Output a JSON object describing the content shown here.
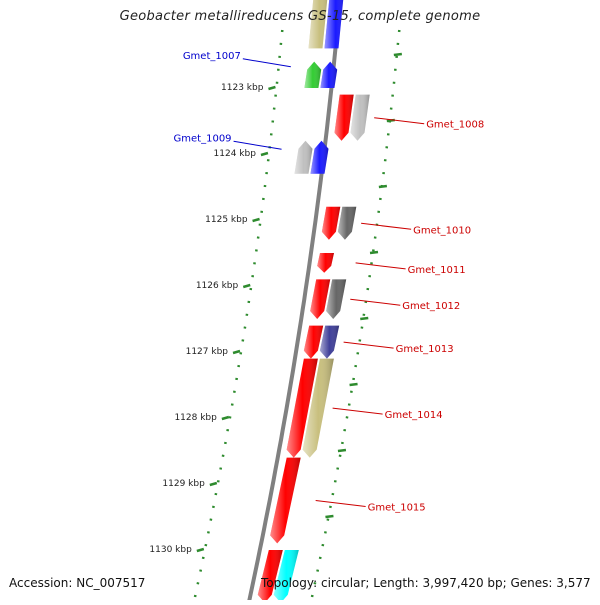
{
  "title": "Geobacter metallireducens GS-15, complete genome",
  "footer": {
    "accession": "Accession: NC_007517",
    "topology": "Topology: circular; Length: 3,997,420 bp; Genes: 3,577"
  },
  "colors": {
    "backbone": "#808080",
    "ruler_ticks": "#2e8b2e",
    "label_forward": "#0000cc",
    "label_reverse": "#cc0000"
  },
  "ruler": {
    "unit": "kbp",
    "ticks": [
      "1123 kbp",
      "1124 kbp",
      "1125 kbp",
      "1126 kbp",
      "1127 kbp",
      "1128 kbp",
      "1129 kbp",
      "1130 kbp"
    ]
  },
  "genes": [
    {
      "label": "",
      "strand": "inner",
      "color": "#c8bf7e",
      "start_kbp": 1121.0,
      "end_kbp": 1122.4
    },
    {
      "label": "",
      "strand": "inner",
      "color": "#1a1aff",
      "start_kbp": 1121.0,
      "end_kbp": 1122.4
    },
    {
      "label": "Gmet_1007",
      "strand": "inner",
      "color": "#33cc33",
      "start_kbp": 1122.6,
      "end_kbp": 1123.0
    },
    {
      "label": "",
      "strand": "inner",
      "color": "#1a1aff",
      "start_kbp": 1122.6,
      "end_kbp": 1123.0
    },
    {
      "label": "Gmet_1008",
      "strand": "outer",
      "color": "#ff0000",
      "start_kbp": 1123.1,
      "end_kbp": 1123.8
    },
    {
      "label": "",
      "strand": "outer",
      "color": "#c0c0c0",
      "start_kbp": 1123.1,
      "end_kbp": 1123.8
    },
    {
      "label": "Gmet_1009",
      "strand": "inner",
      "color": "#c0c0c0",
      "start_kbp": 1123.8,
      "end_kbp": 1124.3
    },
    {
      "label": "",
      "strand": "inner",
      "color": "#1a1aff",
      "start_kbp": 1123.8,
      "end_kbp": 1124.3
    },
    {
      "label": "Gmet_1010",
      "strand": "outer",
      "color": "#ff0000",
      "start_kbp": 1124.8,
      "end_kbp": 1125.3
    },
    {
      "label": "",
      "strand": "outer",
      "color": "#666666",
      "start_kbp": 1124.8,
      "end_kbp": 1125.3
    },
    {
      "label": "Gmet_1011",
      "strand": "outer",
      "color": "#ff0000",
      "start_kbp": 1125.5,
      "end_kbp": 1125.8
    },
    {
      "label": "Gmet_1012",
      "strand": "outer",
      "color": "#ff0000",
      "start_kbp": 1125.9,
      "end_kbp": 1126.5
    },
    {
      "label": "",
      "strand": "outer",
      "color": "#666666",
      "start_kbp": 1125.9,
      "end_kbp": 1126.5
    },
    {
      "label": "Gmet_1013",
      "strand": "outer",
      "color": "#ff0000",
      "start_kbp": 1126.6,
      "end_kbp": 1127.1
    },
    {
      "label": "",
      "strand": "outer",
      "color": "#3f3f99",
      "start_kbp": 1126.6,
      "end_kbp": 1127.1
    },
    {
      "label": "Gmet_1014",
      "strand": "outer",
      "color": "#ff0000",
      "start_kbp": 1127.1,
      "end_kbp": 1128.6
    },
    {
      "label": "",
      "strand": "outer",
      "color": "#c8bf7e",
      "start_kbp": 1127.1,
      "end_kbp": 1128.6
    },
    {
      "label": "Gmet_1015",
      "strand": "outer",
      "color": "#ff0000",
      "start_kbp": 1128.6,
      "end_kbp": 1129.9
    },
    {
      "label": "",
      "strand": "outer",
      "color": "#ff0000",
      "start_kbp": 1130.0,
      "end_kbp": 1130.8
    },
    {
      "label": "",
      "strand": "outer",
      "color": "#00ffff",
      "start_kbp": 1130.0,
      "end_kbp": 1130.8
    }
  ]
}
